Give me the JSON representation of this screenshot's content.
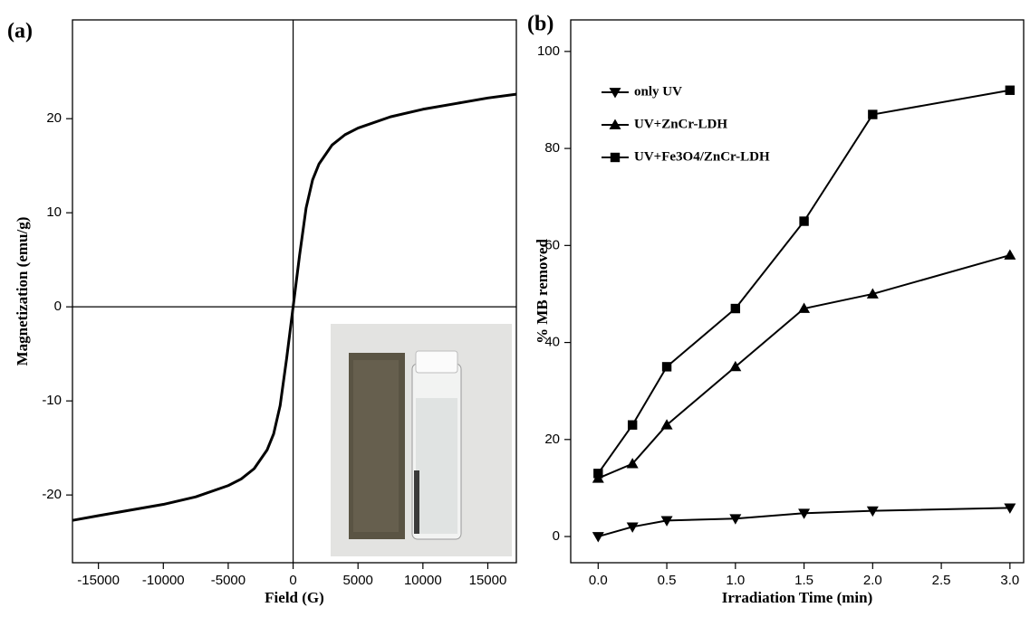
{
  "chart_data": [
    {
      "type": "line",
      "panel_label": "(a)",
      "xlabel": "Field (G)",
      "ylabel": "Magnetization (emu/g)",
      "x": [
        -17000,
        -15000,
        -12500,
        -10000,
        -7500,
        -5000,
        -4000,
        -3000,
        -2000,
        -1500,
        -1000,
        -500,
        0,
        500,
        1000,
        1500,
        2000,
        3000,
        4000,
        5000,
        7500,
        10000,
        12500,
        15000,
        17200
      ],
      "values": [
        -22.7,
        -22.2,
        -21.6,
        -21,
        -20.2,
        -19,
        -18.3,
        -17.2,
        -15.2,
        -13.5,
        -10.5,
        -5.5,
        0,
        5.5,
        10.5,
        13.5,
        15.2,
        17.2,
        18.3,
        19,
        20.2,
        21,
        21.6,
        22.2,
        22.6
      ],
      "color": "#000000",
      "xlim": [
        -17000,
        17200
      ],
      "ylim": [
        -27.2,
        30.5
      ],
      "xticks": [
        -15000,
        -10000,
        -5000,
        0,
        5000,
        10000,
        15000
      ],
      "yticks": [
        -20,
        -10,
        0,
        10,
        20
      ],
      "zero_lines": true
    },
    {
      "type": "line",
      "panel_label": "(b)",
      "xlabel": "Irradiation Time (min)",
      "ylabel": "% MB removed",
      "x": [
        0,
        0.25,
        0.5,
        1,
        1.5,
        2,
        3
      ],
      "series": [
        {
          "name": "only UV",
          "color": "#000000",
          "marker": "triangle-down",
          "values": [
            0,
            2,
            3.3,
            3.7,
            4.8,
            5.3,
            5.9
          ]
        },
        {
          "name": "UV+ZnCr-LDH",
          "color": "#000000",
          "marker": "triangle-up",
          "values": [
            12,
            15,
            23,
            35,
            47,
            50,
            58
          ]
        },
        {
          "name": "UV+Fe3O4/ZnCr-LDH",
          "color": "#000000",
          "marker": "square",
          "values": [
            13,
            23,
            35,
            47,
            65,
            87,
            92
          ]
        }
      ],
      "xlim": [
        -0.2,
        3.1
      ],
      "ylim": [
        -5.4,
        106.5
      ],
      "xticks": [
        {
          "value": 0,
          "label": "0.0"
        },
        {
          "value": 0.5,
          "label": "0.5"
        },
        {
          "value": 1,
          "label": "1.0"
        },
        {
          "value": 1.5,
          "label": "1.5"
        },
        {
          "value": 2,
          "label": "2.0"
        },
        {
          "value": 2.5,
          "label": "2.5"
        },
        {
          "value": 3,
          "label": "3.0"
        }
      ],
      "yticks": [
        0,
        20,
        40,
        60,
        80,
        100
      ],
      "legend": "upper left"
    }
  ]
}
